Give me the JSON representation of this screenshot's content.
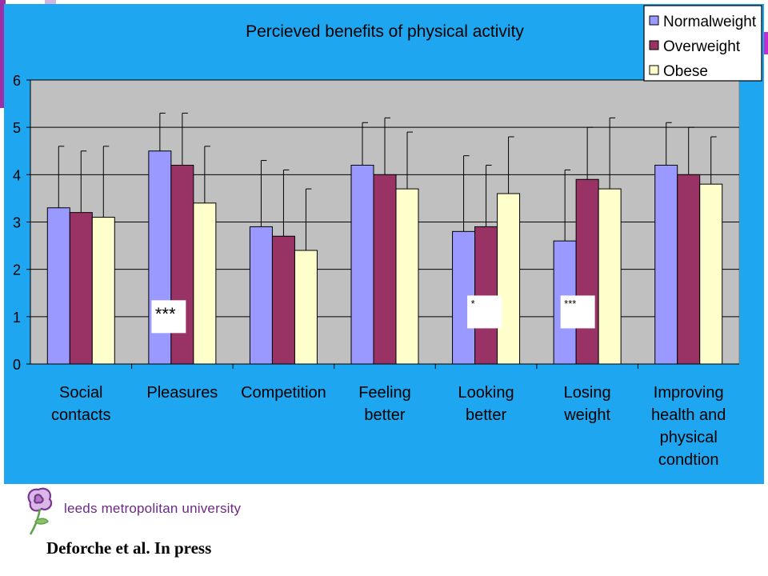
{
  "colors": {
    "background": "#1ea6f0",
    "plot_area": "#c0c0c0",
    "normalweight": "#9999ff",
    "overweight": "#993366",
    "obese": "#ffffcc",
    "logo": "#7a3590"
  },
  "chart_data": {
    "type": "bar",
    "title": "Percieved benefits of physical activity",
    "xlabel": "",
    "ylabel": "",
    "ylim": [
      0,
      6
    ],
    "yticks": [
      0,
      1,
      2,
      3,
      4,
      5,
      6
    ],
    "grid": true,
    "legend_position": "top-right",
    "categories": [
      [
        "Social",
        "contacts"
      ],
      [
        "Pleasures"
      ],
      [
        "Competition"
      ],
      [
        "Feeling",
        "better"
      ],
      [
        "Looking",
        "better"
      ],
      [
        "Losing",
        "weight"
      ],
      [
        "Improving",
        "health and",
        "physical",
        "condtion"
      ]
    ],
    "series": [
      {
        "name": "Normalweight",
        "color": "#9999ff",
        "values": [
          3.3,
          4.5,
          2.9,
          4.2,
          2.8,
          2.6,
          4.2
        ],
        "errors": [
          1.3,
          0.8,
          1.4,
          0.9,
          1.6,
          1.5,
          0.9
        ]
      },
      {
        "name": "Overweight",
        "color": "#993366",
        "values": [
          3.2,
          4.2,
          2.7,
          4.0,
          2.9,
          3.9,
          4.0
        ],
        "errors": [
          1.3,
          1.1,
          1.4,
          1.2,
          1.3,
          1.1,
          1.0
        ]
      },
      {
        "name": "Obese",
        "color": "#ffffcc",
        "values": [
          3.1,
          3.4,
          2.4,
          3.7,
          3.6,
          3.7,
          3.8
        ],
        "errors": [
          1.5,
          1.2,
          1.3,
          1.2,
          1.2,
          1.5,
          1.0
        ]
      }
    ],
    "annotations": [
      {
        "text": "***",
        "category": 1,
        "y": 1.0
      },
      {
        "text": "*",
        "category": 4,
        "y": 1.1
      },
      {
        "text": "***",
        "category": 5,
        "y": 1.1
      }
    ]
  },
  "footer": {
    "logo_text": "leeds metropolitan university",
    "citation": "Deforche et al. In press"
  }
}
